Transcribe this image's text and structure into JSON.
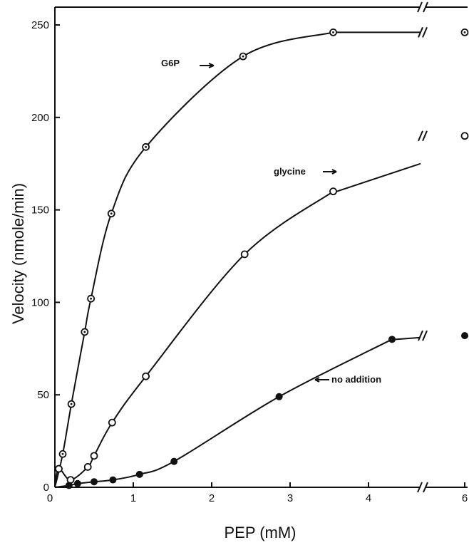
{
  "chart_data": {
    "type": "line",
    "xlabel": "PEP (mM)",
    "ylabel": "Velocity (nmole/min)",
    "xlim": [
      0,
      6
    ],
    "ylim": [
      0,
      260
    ],
    "x_ticks": [
      0,
      1,
      2,
      3,
      4,
      6
    ],
    "x_tick_labels": [
      "0",
      "1",
      "2",
      "3",
      "4",
      "6"
    ],
    "y_ticks": [
      0,
      50,
      100,
      150,
      200,
      250
    ],
    "y_tick_labels": [
      "0",
      "50",
      "100",
      "150",
      "200",
      "250"
    ],
    "axis_break": "between 4 and 6 on x axis",
    "grid": false,
    "series": [
      {
        "name": "G6P",
        "marker": "open circle with dot",
        "points": [
          [
            0.1,
            18
          ],
          [
            0.21,
            45
          ],
          [
            0.38,
            84
          ],
          [
            0.46,
            102
          ],
          [
            0.72,
            148
          ],
          [
            1.16,
            184
          ],
          [
            2.4,
            233
          ],
          [
            3.55,
            246
          ],
          [
            6.0,
            246
          ]
        ]
      },
      {
        "name": "glycine",
        "marker": "open circle",
        "points": [
          [
            0.05,
            10
          ],
          [
            0.2,
            4
          ],
          [
            0.42,
            11
          ],
          [
            0.5,
            17
          ],
          [
            0.73,
            35
          ],
          [
            1.16,
            60
          ],
          [
            2.42,
            126
          ],
          [
            3.55,
            160
          ],
          [
            6.0,
            190
          ]
        ]
      },
      {
        "name": "no addition",
        "marker": "filled circle",
        "points": [
          [
            0.18,
            1
          ],
          [
            0.29,
            2
          ],
          [
            0.5,
            3
          ],
          [
            0.74,
            4
          ],
          [
            1.08,
            7
          ],
          [
            1.52,
            14
          ],
          [
            2.86,
            49
          ],
          [
            4.3,
            80
          ],
          [
            6.0,
            82
          ]
        ]
      }
    ],
    "annotations": [
      {
        "text": "G6P",
        "series": "G6P"
      },
      {
        "text": "glycine",
        "series": "glycine"
      },
      {
        "text": "no addition",
        "series": "no addition"
      }
    ]
  }
}
